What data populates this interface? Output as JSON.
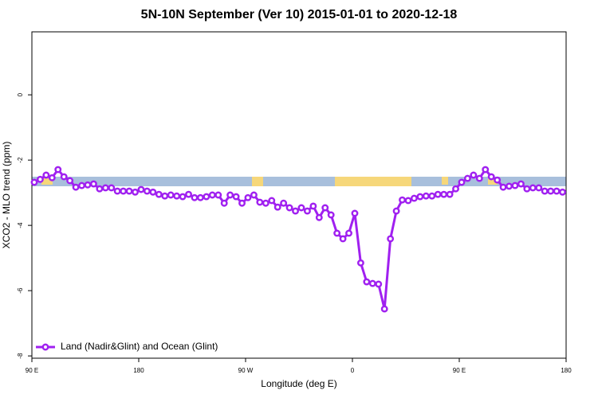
{
  "chart_data": {
    "type": "line",
    "title": "5N-10N September (Ver 10)   2015-01-01 to 2020-12-18",
    "x_label": "Longitude (deg E)",
    "y_label": "XCO2 - MLO trend (ppm)",
    "xlim": [
      90,
      540
    ],
    "ylim": [
      -8.07,
      1.93
    ],
    "xticks": [
      {
        "value": 90,
        "label": "90 E"
      },
      180,
      {
        "value": 270,
        "label": "90 W"
      },
      {
        "value": 360,
        "label": "0"
      },
      {
        "value": 450,
        "label": "90 E"
      },
      {
        "value": 540,
        "label": "180"
      }
    ],
    "yticks": [
      0,
      -2,
      -4,
      -6,
      -8
    ],
    "legend": "bottom-left",
    "x": [
      92,
      97,
      102,
      107,
      112,
      117,
      122,
      127,
      132,
      137,
      142,
      147,
      152,
      157,
      162,
      167,
      172,
      177,
      182,
      187,
      192,
      197,
      202,
      207,
      212,
      217,
      222,
      227,
      232,
      237,
      242,
      247,
      252,
      257,
      262,
      267,
      272,
      277,
      282,
      287,
      292,
      297,
      302,
      307,
      312,
      317,
      322,
      327,
      332,
      337,
      342,
      347,
      352,
      357,
      362,
      367,
      372,
      377,
      382,
      387,
      392,
      397,
      402,
      407,
      412,
      417,
      422,
      427,
      432,
      437,
      442,
      447,
      452,
      457,
      462,
      467,
      472,
      477,
      482,
      487,
      492,
      497,
      502,
      507,
      512,
      517,
      522,
      527,
      532,
      537
    ],
    "series": [
      {
        "name": "Land (Nadir&Glint) and Ocean (Glint)",
        "color": "#a020f0",
        "values": [
          -2.68,
          -2.59,
          -2.46,
          -2.54,
          -2.29,
          -2.51,
          -2.63,
          -2.83,
          -2.78,
          -2.76,
          -2.73,
          -2.88,
          -2.85,
          -2.85,
          -2.95,
          -2.95,
          -2.95,
          -2.98,
          -2.9,
          -2.95,
          -2.98,
          -3.05,
          -3.1,
          -3.07,
          -3.1,
          -3.12,
          -3.05,
          -3.15,
          -3.15,
          -3.12,
          -3.07,
          -3.07,
          -3.32,
          -3.07,
          -3.12,
          -3.32,
          -3.15,
          -3.07,
          -3.29,
          -3.32,
          -3.24,
          -3.44,
          -3.32,
          -3.46,
          -3.56,
          -3.46,
          -3.56,
          -3.41,
          -3.76,
          -3.46,
          -3.68,
          -4.24,
          -4.41,
          -4.24,
          -3.63,
          -5.15,
          -5.73,
          -5.78,
          -5.8,
          -6.56,
          -4.41,
          -3.56,
          -3.22,
          -3.24,
          -3.17,
          -3.12,
          -3.1,
          -3.1,
          -3.05,
          -3.05,
          -3.05,
          -2.88,
          -2.68,
          -2.56,
          -2.46,
          -2.56,
          -2.29,
          -2.51,
          -2.61,
          -2.83,
          -2.8,
          -2.78,
          -2.73,
          -2.88,
          -2.85,
          -2.85,
          -2.95,
          -2.95,
          -2.95,
          -2.98
        ]
      }
    ]
  }
}
